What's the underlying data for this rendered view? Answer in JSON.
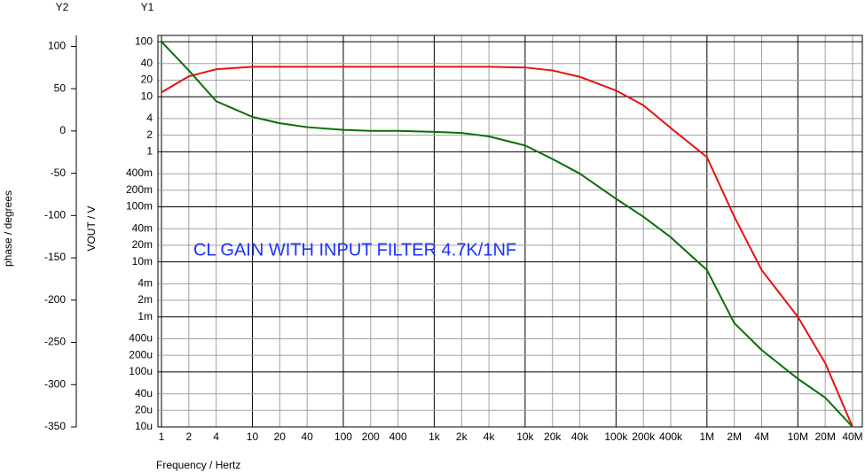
{
  "chart_data": {
    "type": "line",
    "annotation": "CL GAIN WITH INPUT FILTER 4.7K/1NF",
    "x_label": "Frequency / Hertz",
    "y_label": "VOUT / V",
    "y2_label": "phase / degrees",
    "y_axis_name": "Y1",
    "y2_axis_name": "Y2",
    "x_log": true,
    "y_log": true,
    "grid": true,
    "x": [
      1,
      2,
      4,
      10,
      20,
      40,
      100,
      200,
      400,
      1000,
      2000,
      4000,
      10000,
      20000,
      40000,
      100000,
      200000,
      400000,
      1000000,
      2000000,
      4000000,
      10000000,
      20000000,
      40000000
    ],
    "series": [
      {
        "color": "#e81010",
        "values": [
          12,
          23.5,
          31.6,
          35,
          35,
          35,
          35,
          35,
          35,
          35,
          35,
          35,
          34,
          30,
          23,
          13,
          7,
          2.7,
          0.8,
          0.066,
          0.0071,
          0.001,
          0.000145,
          1e-05
        ]
      },
      {
        "color": "#0a6e0a",
        "values": [
          100,
          30,
          8.3,
          4.3,
          3.3,
          2.8,
          2.5,
          2.4,
          2.4,
          2.3,
          2.2,
          1.9,
          1.3,
          0.74,
          0.4,
          0.14,
          0.066,
          0.028,
          0.0071,
          0.00077,
          0.00025,
          7.5e-05,
          3.4e-05,
          1e-05
        ]
      }
    ],
    "xlim": [
      1,
      40000000
    ],
    "xticks": [
      1,
      2,
      4,
      10,
      20,
      40,
      100,
      200,
      400,
      {
        "value": 1000,
        "label": "1k"
      },
      {
        "value": 2000,
        "label": "2k"
      },
      {
        "value": 4000,
        "label": "4k"
      },
      {
        "value": 10000,
        "label": "10k"
      },
      {
        "value": 20000,
        "label": "20k"
      },
      {
        "value": 40000,
        "label": "40k"
      },
      {
        "value": 100000,
        "label": "100k"
      },
      {
        "value": 200000,
        "label": "200k"
      },
      {
        "value": 400000,
        "label": "400k"
      },
      {
        "value": 1000000,
        "label": "1M"
      },
      {
        "value": 2000000,
        "label": "2M"
      },
      {
        "value": 4000000,
        "label": "4M"
      },
      {
        "value": 10000000,
        "label": "10M"
      },
      {
        "value": 20000000,
        "label": "20M"
      },
      {
        "value": 40000000,
        "label": "40M"
      }
    ],
    "ylim": [
      1e-05,
      130
    ],
    "yticks": [
      100,
      40,
      20,
      10,
      4,
      2,
      1,
      {
        "value": 0.4,
        "label": "400m"
      },
      {
        "value": 0.2,
        "label": "200m"
      },
      {
        "value": 0.1,
        "label": "100m"
      },
      {
        "value": 0.04,
        "label": "40m"
      },
      {
        "value": 0.02,
        "label": "20m"
      },
      {
        "value": 0.01,
        "label": "10m"
      },
      {
        "value": 0.004,
        "label": "4m"
      },
      {
        "value": 0.002,
        "label": "2m"
      },
      {
        "value": 0.001,
        "label": "1m"
      },
      {
        "value": 0.0004,
        "label": "400u"
      },
      {
        "value": 0.0002,
        "label": "200u"
      },
      {
        "value": 0.0001,
        "label": "100u"
      },
      {
        "value": 4e-05,
        "label": "40u"
      },
      {
        "value": 2e-05,
        "label": "20u"
      },
      {
        "value": 1e-05,
        "label": "10u"
      }
    ],
    "y2lim": [
      -350,
      113
    ],
    "y2ticks": [
      100,
      50,
      0,
      -50,
      -100,
      -150,
      -200,
      -250,
      -300,
      -350
    ]
  }
}
